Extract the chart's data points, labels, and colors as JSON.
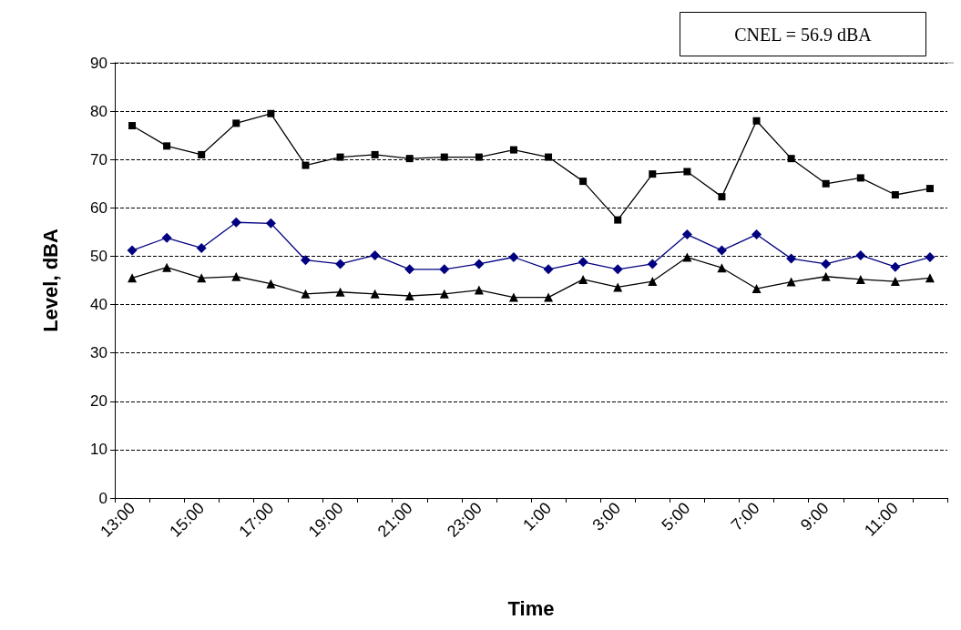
{
  "chart_data": {
    "type": "line",
    "xlabel": "Time",
    "ylabel": "Level, dBA",
    "categories": [
      "13:00",
      null,
      "15:00",
      null,
      "17:00",
      null,
      "19:00",
      null,
      "21:00",
      null,
      "23:00",
      null,
      "1:00",
      null,
      "3:00",
      null,
      "5:00",
      null,
      "7:00",
      null,
      "9:00",
      null,
      "11:00",
      null
    ],
    "series": [
      {
        "color": "#000000",
        "marker": "square",
        "values": [
          77,
          72.8,
          71,
          77.5,
          79.5,
          68.8,
          70.5,
          71,
          70.2,
          70.5,
          70.5,
          72,
          70.5,
          65.5,
          57.5,
          67,
          67.5,
          62.3,
          78,
          70.2,
          65,
          66.2,
          62.7,
          64
        ]
      },
      {
        "color": "#000080",
        "marker": "diamond",
        "values": [
          51.2,
          53.8,
          51.7,
          57,
          56.8,
          49.2,
          48.4,
          50.2,
          47.3,
          47.3,
          48.4,
          49.8,
          47.3,
          48.8,
          47.3,
          48.4,
          54.5,
          51.2,
          54.5,
          49.5,
          48.4,
          50.2,
          47.8,
          49.8
        ]
      },
      {
        "color": "#000000",
        "marker": "triangle",
        "values": [
          45.5,
          47.7,
          45.5,
          45.8,
          44.3,
          42.2,
          42.6,
          42.2,
          41.8,
          42.2,
          43,
          41.5,
          41.5,
          45.2,
          43.6,
          44.8,
          49.8,
          47.6,
          43.3,
          44.7,
          45.8,
          45.2,
          44.8,
          45.5
        ]
      }
    ],
    "ylim": [
      0,
      90
    ],
    "yticks": [
      0,
      10,
      20,
      30,
      40,
      50,
      60,
      70,
      80,
      90
    ],
    "grid": "y",
    "line_style": "solid",
    "annotations": [
      "CNEL = 56.9 dBA"
    ]
  }
}
